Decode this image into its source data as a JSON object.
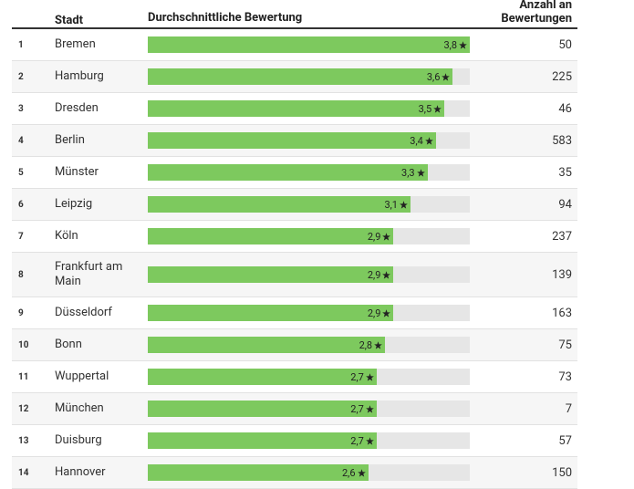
{
  "chart_data": {
    "type": "bar",
    "columns": [
      "Stadt",
      "Durchschnittliche Bewertung",
      "Anzahl an Bewertungen"
    ],
    "ranks": [
      1,
      2,
      3,
      4,
      5,
      6,
      7,
      8,
      9,
      10,
      11,
      12,
      13,
      14
    ],
    "categories": [
      "Bremen",
      "Hamburg",
      "Dresden",
      "Berlin",
      "Münster",
      "Leipzig",
      "Köln",
      "Frankfurt am Main",
      "Düsseldorf",
      "Bonn",
      "Wuppertal",
      "München",
      "Duisburg",
      "Hannover"
    ],
    "values": [
      3.8,
      3.6,
      3.5,
      3.4,
      3.3,
      3.1,
      2.9,
      2.9,
      2.9,
      2.8,
      2.7,
      2.7,
      2.7,
      2.6
    ],
    "value_labels": [
      "3,8",
      "3,6",
      "3,5",
      "3,4",
      "3,3",
      "3,1",
      "2,9",
      "2,9",
      "2,9",
      "2,8",
      "2,7",
      "2,7",
      "2,7",
      "2,6"
    ],
    "counts": [
      50,
      225,
      46,
      583,
      35,
      94,
      237,
      139,
      163,
      75,
      73,
      7,
      57,
      150
    ],
    "xlim": [
      0,
      3.8
    ],
    "color": "#7dc95e"
  }
}
